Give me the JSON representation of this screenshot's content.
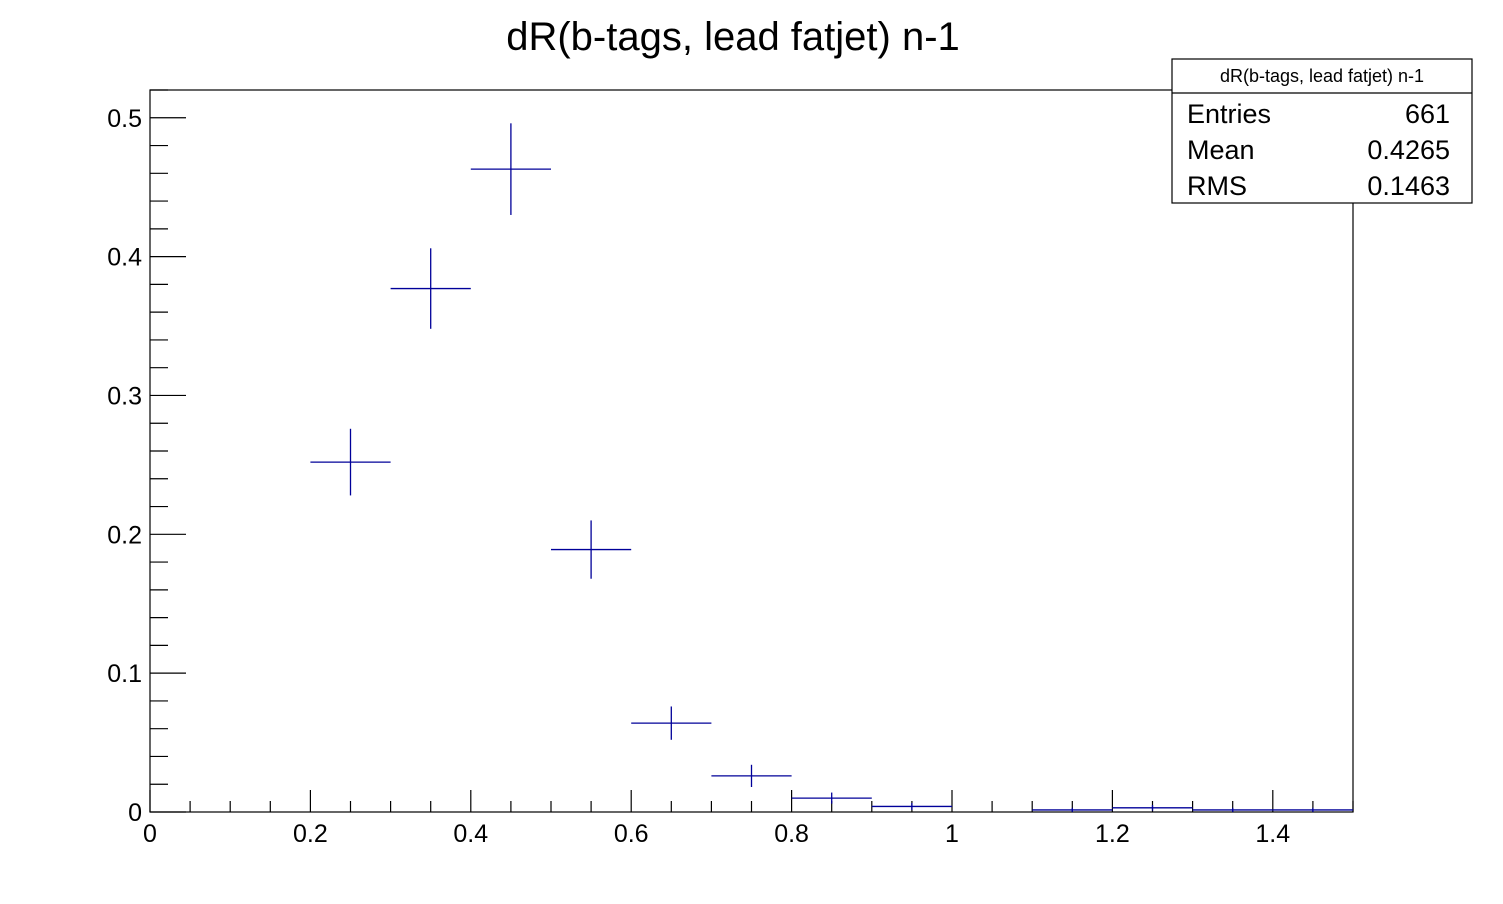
{
  "chart_data": {
    "type": "scatter",
    "title": "dR(b-tags, lead fatjet) n-1",
    "xlabel": "",
    "ylabel": "",
    "xlim": [
      0,
      1.5
    ],
    "ylim": [
      0,
      0.52
    ],
    "grid": false,
    "x_ticks": [
      {
        "value": 0,
        "label": "0"
      },
      {
        "value": 0.2,
        "label": "0.2"
      },
      {
        "value": 0.4,
        "label": "0.4"
      },
      {
        "value": 0.6,
        "label": "0.6"
      },
      {
        "value": 0.8,
        "label": "0.8"
      },
      {
        "value": 1.0,
        "label": "1"
      },
      {
        "value": 1.2,
        "label": "1.2"
      },
      {
        "value": 1.4,
        "label": "1.4"
      }
    ],
    "y_ticks": [
      {
        "value": 0,
        "label": "0"
      },
      {
        "value": 0.1,
        "label": "0.1"
      },
      {
        "value": 0.2,
        "label": "0.2"
      },
      {
        "value": 0.3,
        "label": "0.3"
      },
      {
        "value": 0.4,
        "label": "0.4"
      },
      {
        "value": 0.5,
        "label": "0.5"
      }
    ],
    "marker_color": "#000099",
    "series": [
      {
        "bin_width": 0.1,
        "points": [
          {
            "x": 0.25,
            "y": 0.252,
            "err": 0.024
          },
          {
            "x": 0.35,
            "y": 0.377,
            "err": 0.029
          },
          {
            "x": 0.45,
            "y": 0.463,
            "err": 0.033
          },
          {
            "x": 0.55,
            "y": 0.189,
            "err": 0.021
          },
          {
            "x": 0.65,
            "y": 0.064,
            "err": 0.012
          },
          {
            "x": 0.75,
            "y": 0.026,
            "err": 0.008
          },
          {
            "x": 0.85,
            "y": 0.01,
            "err": 0.004
          },
          {
            "x": 0.95,
            "y": 0.004,
            "err": 0.0025
          },
          {
            "x": 1.15,
            "y": 0.0015,
            "err": 0.0015
          },
          {
            "x": 1.25,
            "y": 0.003,
            "err": 0.002
          },
          {
            "x": 1.35,
            "y": 0.0015,
            "err": 0.0015
          },
          {
            "x": 1.45,
            "y": 0.0015,
            "err": 0.0015
          }
        ]
      }
    ],
    "stats_box": {
      "title": "dR(b-tags, lead fatjet) n-1",
      "placement": "top-right",
      "rows": [
        {
          "label": "Entries",
          "value": "661"
        },
        {
          "label": "Mean",
          "value": "0.4265"
        },
        {
          "label": "RMS",
          "value": "0.1463"
        }
      ]
    }
  }
}
